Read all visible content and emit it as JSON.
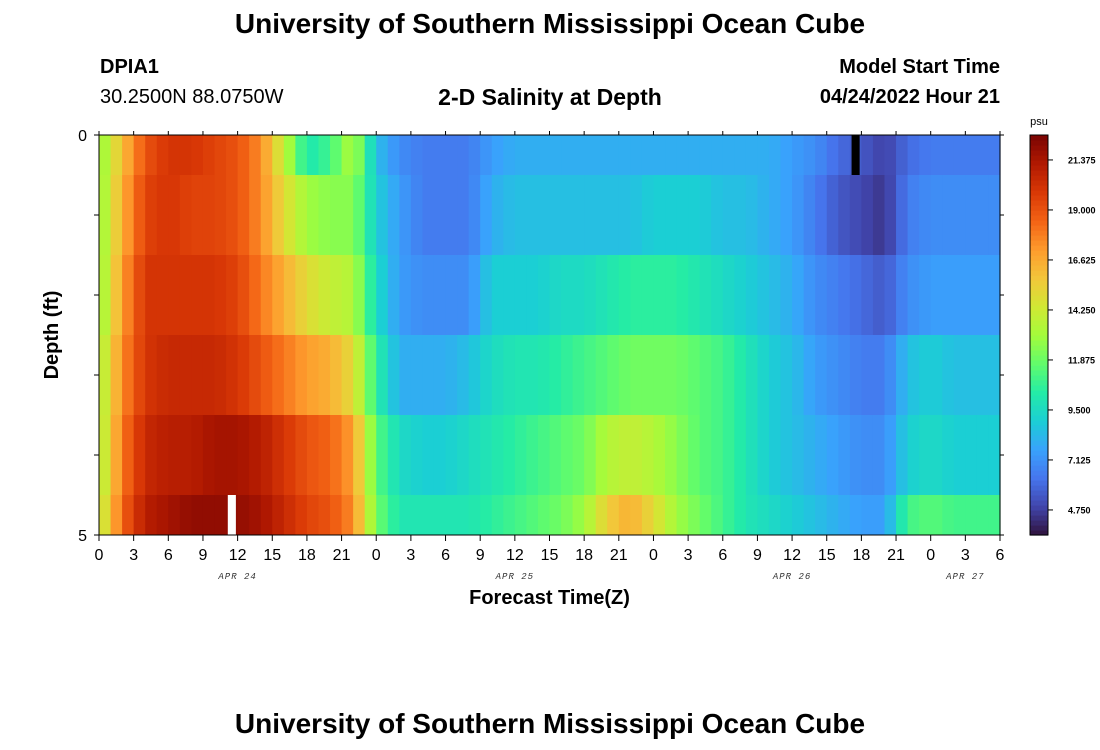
{
  "page": {
    "title_top": "University of Southern Mississippi Ocean Cube",
    "title_bottom": "University of Southern Mississippi Ocean Cube",
    "station": "DPIA1",
    "coords": "30.2500N  88.0750W",
    "subtitle": "2-D Salinity at Depth",
    "model_start_label": "Model Start Time",
    "model_start_value": "04/24/2022 Hour 21"
  },
  "chart_data": {
    "type": "heatmap",
    "title": "2-D Salinity at Depth",
    "xlabel": "Forecast Time(Z)",
    "ylabel": "Depth (ft)",
    "x_tick_labels": [
      "0",
      "3",
      "6",
      "9",
      "12",
      "15",
      "18",
      "21",
      "0",
      "3",
      "6",
      "9",
      "12",
      "15",
      "18",
      "21",
      "0",
      "3",
      "6",
      "9",
      "12",
      "15",
      "18",
      "21",
      "0",
      "3",
      "6"
    ],
    "x_tick_hours": [
      0,
      3,
      6,
      9,
      12,
      15,
      18,
      21,
      24,
      27,
      30,
      33,
      36,
      39,
      42,
      45,
      48,
      51,
      54,
      57,
      60,
      63,
      66,
      69,
      72,
      75,
      78
    ],
    "x_range": [
      0,
      78
    ],
    "day_labels": [
      {
        "text": "APR 24",
        "hour": 12
      },
      {
        "text": "APR 25",
        "hour": 36
      },
      {
        "text": "APR 26",
        "hour": 60
      },
      {
        "text": "APR 27",
        "hour": 75
      }
    ],
    "y_tick_labels": [
      "0",
      "5"
    ],
    "y_range": [
      0,
      5
    ],
    "colorbar": {
      "unit": "psu",
      "min": 3.56,
      "max": 22.56,
      "ticks": [
        21.375,
        19.0,
        16.625,
        14.25,
        11.875,
        9.5,
        7.125,
        4.75
      ],
      "tick_labels": [
        "21.375",
        "19.000",
        "16.625",
        "14.250",
        "11.875",
        "9.500",
        "7.125",
        "4.750"
      ],
      "colors": [
        "#30123b",
        "#4145ab",
        "#4675ed",
        "#39a2fc",
        "#1bcfd4",
        "#24eca6",
        "#61fc6c",
        "#a4fc3b",
        "#d1e834",
        "#f3c63a",
        "#fe9b2d",
        "#f36315",
        "#d93806",
        "#b11901",
        "#7a0403"
      ]
    },
    "depth_levels": [
      {
        "depth_range": [
          0,
          0.5
        ],
        "hours": [
          0,
          2,
          4,
          6,
          8,
          10,
          12,
          14,
          16,
          18,
          20,
          22,
          24,
          26,
          28,
          30,
          32,
          34,
          36,
          38,
          40,
          42,
          44,
          46,
          48,
          50,
          52,
          54,
          56,
          58,
          60,
          62,
          64,
          66,
          68,
          70,
          72,
          74,
          76,
          78
        ],
        "values": [
          12.5,
          16,
          19,
          20,
          20,
          19.5,
          19,
          17.5,
          14,
          10,
          11,
          13.5,
          8.5,
          7,
          6.5,
          6.5,
          6.5,
          7.5,
          8,
          8,
          8,
          8,
          8,
          8,
          8,
          8,
          8,
          8,
          8,
          8,
          7.5,
          7,
          6,
          5.5,
          4.8,
          6,
          6.5,
          6.5,
          6.5,
          6.5
        ]
      },
      {
        "depth_range": [
          0.5,
          1.5
        ],
        "hours": [
          0,
          2,
          4,
          6,
          8,
          10,
          12,
          14,
          16,
          18,
          20,
          22,
          24,
          26,
          28,
          30,
          32,
          34,
          36,
          38,
          40,
          42,
          44,
          46,
          48,
          50,
          52,
          54,
          56,
          58,
          60,
          62,
          64,
          66,
          68,
          70,
          72,
          74,
          76,
          78
        ],
        "values": [
          12.5,
          16.5,
          19.5,
          20,
          19.5,
          19.5,
          19,
          17.5,
          15,
          13,
          12.5,
          12.5,
          9,
          7.5,
          6.5,
          6.5,
          6.5,
          8,
          8.5,
          8.5,
          8.5,
          8.5,
          8.5,
          8.5,
          9,
          9,
          9,
          8.5,
          8.5,
          8,
          7.5,
          6.5,
          5.5,
          5,
          4.5,
          6.5,
          7,
          7,
          7,
          7
        ]
      },
      {
        "depth_range": [
          1.5,
          2.5
        ],
        "hours": [
          0,
          2,
          4,
          6,
          8,
          10,
          12,
          14,
          16,
          18,
          20,
          22,
          24,
          26,
          28,
          30,
          32,
          34,
          36,
          38,
          40,
          42,
          44,
          46,
          48,
          50,
          52,
          54,
          56,
          58,
          60,
          62,
          64,
          66,
          68,
          70,
          72,
          74,
          76,
          78
        ],
        "values": [
          12.5,
          17,
          20,
          20,
          20,
          20,
          19.5,
          18,
          16.5,
          15,
          14,
          13.5,
          9.5,
          7.5,
          7,
          7,
          7,
          9,
          9,
          9,
          9.5,
          9.5,
          10,
          10.5,
          10.5,
          10.5,
          10,
          9.5,
          9,
          8.5,
          8,
          7,
          6.5,
          6,
          5.5,
          7,
          7.5,
          7.5,
          7.5,
          7.5
        ]
      },
      {
        "depth_range": [
          2.5,
          3.5
        ],
        "hours": [
          0,
          2,
          4,
          6,
          8,
          10,
          12,
          14,
          16,
          18,
          20,
          22,
          24,
          26,
          28,
          30,
          32,
          34,
          36,
          38,
          40,
          42,
          44,
          46,
          48,
          50,
          52,
          54,
          56,
          58,
          60,
          62,
          64,
          66,
          68,
          70,
          72,
          74,
          76,
          78
        ],
        "values": [
          13,
          17.5,
          20,
          20.5,
          20.5,
          20.5,
          20,
          19,
          18,
          17,
          16.5,
          15,
          10.5,
          8,
          8,
          8,
          8.5,
          9.5,
          10,
          10,
          10.5,
          11,
          11.5,
          12,
          12,
          12,
          11.5,
          11,
          10,
          9,
          8.5,
          7.5,
          7,
          6.5,
          6.5,
          8.5,
          9,
          8.5,
          8.5,
          8.5
        ]
      },
      {
        "depth_range": [
          3.5,
          4.5
        ],
        "hours": [
          0,
          2,
          4,
          6,
          8,
          10,
          12,
          14,
          16,
          18,
          20,
          22,
          24,
          26,
          28,
          30,
          32,
          34,
          36,
          38,
          40,
          42,
          44,
          46,
          48,
          50,
          52,
          54,
          56,
          58,
          60,
          62,
          64,
          66,
          68,
          70,
          72,
          74,
          76,
          78
        ],
        "values": [
          13,
          18,
          20.5,
          21,
          21,
          21.5,
          21.5,
          21,
          20,
          19,
          18.5,
          17,
          11.5,
          9.5,
          9,
          9,
          9.5,
          10,
          10.5,
          11,
          11.5,
          12,
          13.5,
          14,
          13.5,
          12.5,
          11.5,
          11,
          10,
          9,
          8.5,
          8,
          7.5,
          7,
          7,
          9,
          9.5,
          9,
          9,
          9
        ]
      },
      {
        "depth_range": [
          4.5,
          5
        ],
        "hours": [
          0,
          2,
          4,
          6,
          8,
          10,
          12,
          14,
          16,
          18,
          20,
          22,
          24,
          26,
          28,
          30,
          32,
          34,
          36,
          38,
          40,
          42,
          44,
          46,
          48,
          50,
          52,
          54,
          56,
          58,
          60,
          62,
          64,
          66,
          68,
          70,
          72,
          74,
          76,
          78
        ],
        "values": [
          13.5,
          18.5,
          21,
          21.5,
          22,
          22,
          22,
          21.5,
          20.5,
          19.5,
          19,
          17.5,
          12,
          10,
          10,
          10,
          10,
          10.5,
          11,
          11.5,
          12,
          13,
          15.5,
          16.5,
          15,
          13,
          12,
          11,
          10,
          9.5,
          9,
          8.5,
          8,
          7.5,
          7.5,
          11,
          11.5,
          11,
          11,
          11
        ]
      }
    ],
    "special_cells": [
      {
        "hour": 11.5,
        "depth_range": [
          4.5,
          5
        ],
        "color": "#ffffff"
      },
      {
        "hour": 65.5,
        "depth_range": [
          0,
          0.5
        ],
        "color": "#000000"
      }
    ]
  }
}
